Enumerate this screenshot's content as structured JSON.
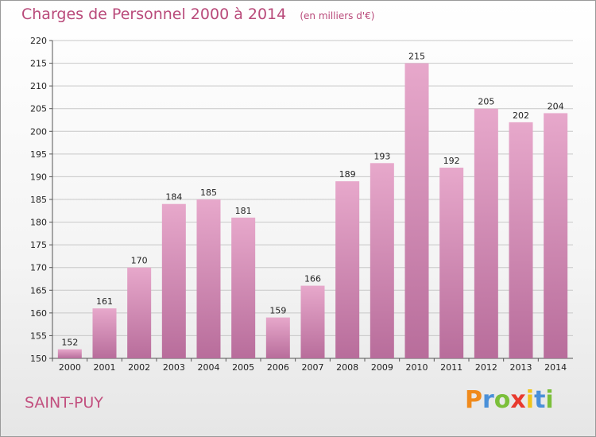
{
  "title": "Charges de Personnel 2000 à 2014",
  "subtitle": "(en milliers d'€)",
  "place": "SAINT-PUY",
  "brand": {
    "letters": [
      "P",
      "r",
      "o",
      "x",
      "i",
      "t",
      "i"
    ],
    "colors": [
      "#f08a1c",
      "#4a90d9",
      "#7bbf3a",
      "#e83a2e",
      "#f0c419",
      "#4a90d9",
      "#7bbf3a"
    ]
  },
  "colors": {
    "bar_top": "#e7a8cb",
    "bar_bottom": "#b86d9b",
    "title": "#b94a7a",
    "grid": "#c8c8c8"
  },
  "chart_data": {
    "type": "bar",
    "title": "Charges de Personnel 2000 à 2014",
    "subtitle": "(en milliers d'€)",
    "categories": [
      "2000",
      "2001",
      "2002",
      "2003",
      "2004",
      "2005",
      "2006",
      "2007",
      "2008",
      "2009",
      "2010",
      "2011",
      "2012",
      "2013",
      "2014"
    ],
    "values": [
      152,
      161,
      170,
      184,
      185,
      181,
      159,
      166,
      189,
      193,
      215,
      192,
      205,
      202,
      204
    ],
    "ylim": [
      150,
      220
    ],
    "yticks": [
      150,
      155,
      160,
      165,
      170,
      175,
      180,
      185,
      190,
      195,
      200,
      205,
      210,
      215,
      220
    ],
    "grid": true,
    "data_labels": true
  }
}
